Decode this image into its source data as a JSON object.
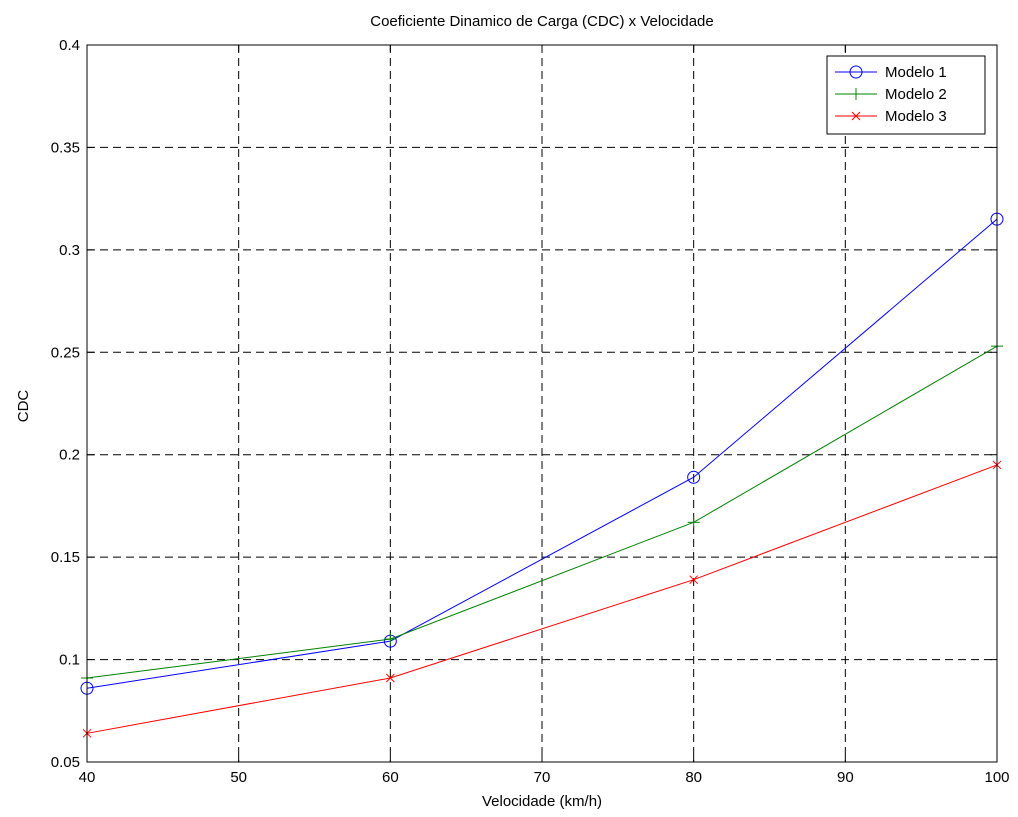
{
  "chart_data": {
    "type": "line",
    "title": "Coeficiente Dinamico de Carga (CDC) x Velocidade",
    "xlabel": "Velocidade (km/h)",
    "ylabel": "CDC",
    "x": [
      40,
      60,
      80,
      100
    ],
    "xlim": [
      40,
      100
    ],
    "ylim": [
      0.05,
      0.4
    ],
    "xticks": [
      40,
      50,
      60,
      70,
      80,
      90,
      100
    ],
    "yticks": [
      0.05,
      0.1,
      0.15,
      0.2,
      0.25,
      0.3,
      0.35,
      0.4
    ],
    "xtick_labels": [
      "40",
      "50",
      "60",
      "70",
      "80",
      "90",
      "100"
    ],
    "ytick_labels": [
      "0.05",
      "0.1",
      "0.15",
      "0.2",
      "0.25",
      "0.3",
      "0.35",
      "0.4"
    ],
    "grid": true,
    "legend_position": "top-right",
    "series": [
      {
        "name": "Modelo 1",
        "color": "#0000ff",
        "marker": "circle",
        "values": [
          0.086,
          0.109,
          0.189,
          0.315
        ]
      },
      {
        "name": "Modelo 2",
        "color": "#008000",
        "marker": "plus",
        "values": [
          0.091,
          0.11,
          0.167,
          0.253
        ]
      },
      {
        "name": "Modelo 3",
        "color": "#ff0000",
        "marker": "x",
        "values": [
          0.064,
          0.091,
          0.139,
          0.195
        ]
      }
    ]
  }
}
